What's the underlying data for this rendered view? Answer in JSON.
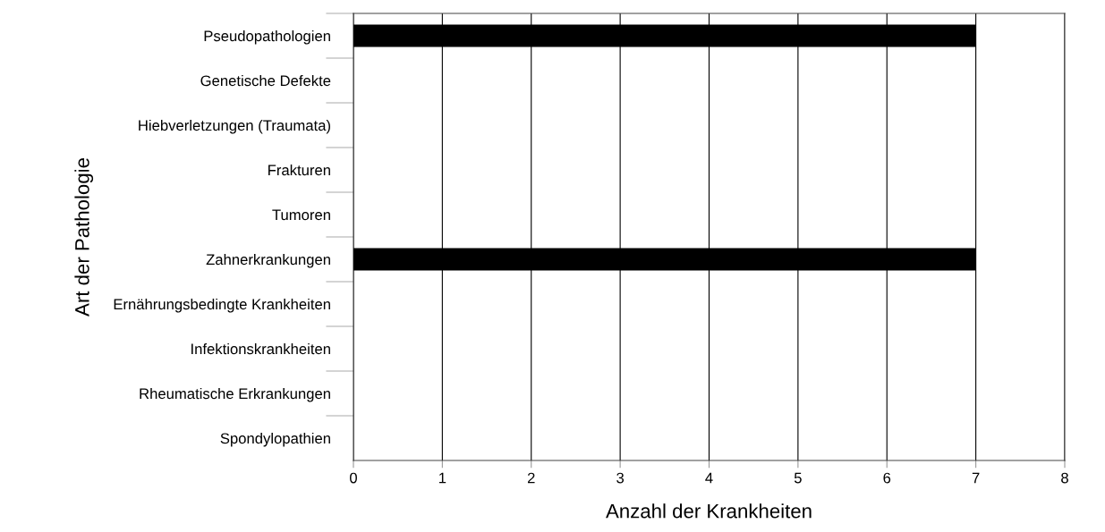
{
  "chart_data": {
    "type": "bar",
    "orientation": "horizontal",
    "categories": [
      "Pseudopathologien",
      "Genetische Defekte",
      "Hiebverletzungen (Traumata)",
      "Frakturen",
      "Tumoren",
      "Zahnerkrankungen",
      "Ernährungsbedingte Krankheiten",
      "Infektionskrankheiten",
      "Rheumatische Erkrankungen",
      "Spondylopathien"
    ],
    "values": [
      7,
      0,
      0,
      0,
      0,
      7,
      0,
      0,
      0,
      0
    ],
    "color": "#000000",
    "xlim": [
      0,
      8
    ],
    "xticks": [
      0,
      1,
      2,
      3,
      4,
      5,
      6,
      7,
      8
    ],
    "xlabel": "Anzahl der Krankheiten",
    "ylabel": "Art der Pathologie",
    "grid": "x",
    "legend": false
  }
}
